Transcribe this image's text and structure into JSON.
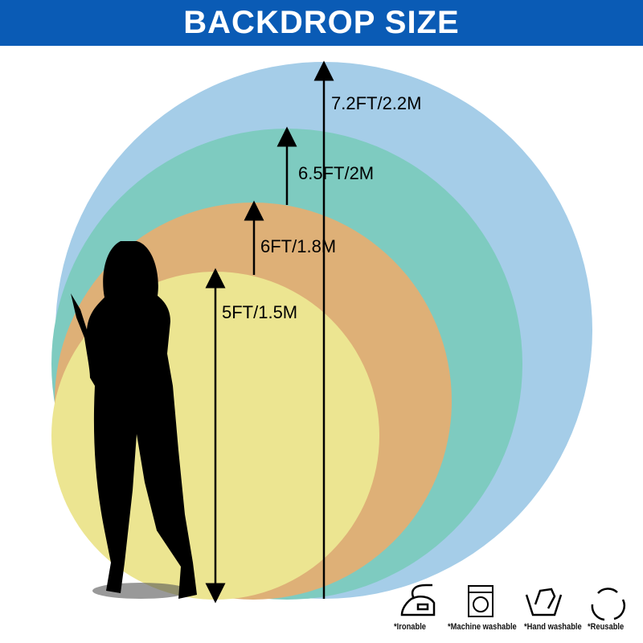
{
  "header": {
    "title": "BACKDROP SIZE"
  },
  "sizes": [
    {
      "label": "7.2FT/2.2M",
      "color": "#a5cde8"
    },
    {
      "label": "6.5FT/2M",
      "color": "#7ecbc0"
    },
    {
      "label": "6FT/1.8M",
      "color": "#deb077"
    },
    {
      "label": "5FT/1.5M",
      "color": "#ece591"
    }
  ],
  "care": [
    {
      "icon": "iron-icon",
      "label": "*Ironable"
    },
    {
      "icon": "washing-machine-icon",
      "label": "*Machine washable"
    },
    {
      "icon": "hand-wash-icon",
      "label": "*Hand washable"
    },
    {
      "icon": "recycle-icon",
      "label": "*Reusable"
    }
  ],
  "colors": {
    "header": "#0a5bb5"
  }
}
